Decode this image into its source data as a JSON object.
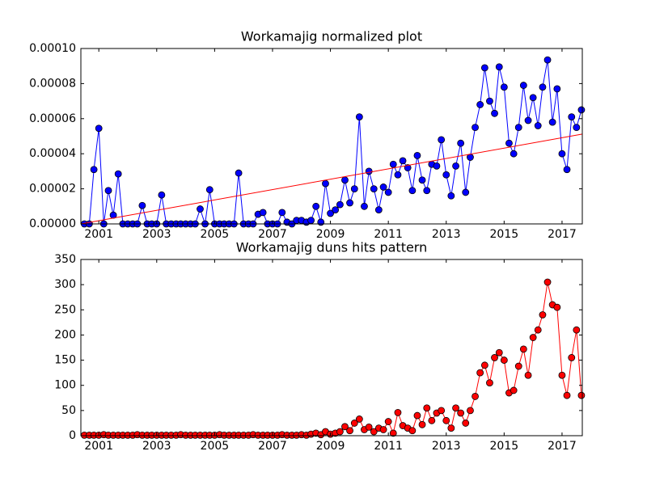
{
  "chart_data": [
    {
      "type": "line",
      "title": "Workamajig normalized plot",
      "xlim": [
        2000.38,
        2017.7
      ],
      "xticks": [
        2001,
        2003,
        2005,
        2007,
        2009,
        2011,
        2013,
        2015,
        2017
      ],
      "ylim": [
        0,
        0.0001
      ],
      "yticks": [
        {
          "value": 0,
          "label": "0.00000"
        },
        {
          "value": 2e-05,
          "label": "0.00002"
        },
        {
          "value": 4e-05,
          "label": "0.00004"
        },
        {
          "value": 6e-05,
          "label": "0.00006"
        },
        {
          "value": 8e-05,
          "label": "0.00008"
        },
        {
          "value": 0.0001,
          "label": "0.00010"
        }
      ],
      "x": [
        2000.5,
        2000.67,
        2000.83,
        2001,
        2001.17,
        2001.33,
        2001.5,
        2001.67,
        2001.83,
        2002,
        2002.17,
        2002.33,
        2002.5,
        2002.67,
        2002.83,
        2003,
        2003.17,
        2003.33,
        2003.5,
        2003.67,
        2003.83,
        2004,
        2004.17,
        2004.33,
        2004.5,
        2004.67,
        2004.83,
        2005,
        2005.17,
        2005.33,
        2005.5,
        2005.67,
        2005.83,
        2006,
        2006.17,
        2006.33,
        2006.5,
        2006.67,
        2006.83,
        2007,
        2007.17,
        2007.33,
        2007.5,
        2007.67,
        2007.83,
        2008,
        2008.17,
        2008.33,
        2008.5,
        2008.67,
        2008.83,
        2009,
        2009.17,
        2009.33,
        2009.5,
        2009.67,
        2009.83,
        2010,
        2010.17,
        2010.33,
        2010.5,
        2010.67,
        2010.83,
        2011,
        2011.17,
        2011.33,
        2011.5,
        2011.67,
        2011.83,
        2012,
        2012.17,
        2012.33,
        2012.5,
        2012.67,
        2012.83,
        2013,
        2013.17,
        2013.33,
        2013.5,
        2013.67,
        2013.83,
        2014,
        2014.17,
        2014.33,
        2014.5,
        2014.67,
        2014.83,
        2015,
        2015.17,
        2015.33,
        2015.5,
        2015.67,
        2015.83,
        2016,
        2016.17,
        2016.33,
        2016.5,
        2016.67,
        2016.83,
        2017,
        2017.17,
        2017.33,
        2017.5,
        2017.67
      ],
      "series": [
        {
          "color": "#0000ff",
          "marker": true,
          "values": [
            0,
            0,
            3.1e-05,
            5.45e-05,
            0,
            1.9e-05,
            5e-06,
            2.85e-05,
            0,
            0,
            0,
            0,
            1.05e-05,
            0,
            0,
            0,
            1.65e-05,
            0,
            0,
            0,
            0,
            0,
            0,
            0,
            8.5e-06,
            0,
            1.95e-05,
            0,
            0,
            0,
            0,
            0,
            2.9e-05,
            0,
            0,
            0,
            5.5e-06,
            6.5e-06,
            0,
            0,
            0,
            6.5e-06,
            1e-06,
            0,
            2e-06,
            2e-06,
            1e-06,
            2e-06,
            1e-05,
            1e-06,
            2.3e-05,
            6e-06,
            8e-06,
            1.1e-05,
            2.5e-05,
            1.2e-05,
            2e-05,
            6.1e-05,
            1e-05,
            3e-05,
            2e-05,
            8e-06,
            2.1e-05,
            1.8e-05,
            3.4e-05,
            2.8e-05,
            3.6e-05,
            3.2e-05,
            1.9e-05,
            3.9e-05,
            2.5e-05,
            1.9e-05,
            3.4e-05,
            3.3e-05,
            4.8e-05,
            2.8e-05,
            1.6e-05,
            3.3e-05,
            4.6e-05,
            1.8e-05,
            3.8e-05,
            5.5e-05,
            6.8e-05,
            8.9e-05,
            7e-05,
            6.3e-05,
            8.95e-05,
            7.8e-05,
            4.6e-05,
            4e-05,
            5.5e-05,
            7.9e-05,
            5.9e-05,
            7.2e-05,
            5.6e-05,
            7.8e-05,
            9.35e-05,
            5.8e-05,
            7.7e-05,
            4e-05,
            3.1e-05,
            6.1e-05,
            5.5e-05,
            6.5e-05
          ]
        },
        {
          "color": "#ff0000",
          "marker": false,
          "x": [
            2000.38,
            2017.7
          ],
          "values": [
            0,
            5.12e-05
          ]
        }
      ]
    },
    {
      "type": "line",
      "title": "Workamajig duns hits pattern",
      "xlim": [
        2000.38,
        2017.7
      ],
      "xticks": [
        2001,
        2003,
        2005,
        2007,
        2009,
        2011,
        2013,
        2015,
        2017
      ],
      "ylim": [
        0,
        350
      ],
      "yticks": [
        0,
        50,
        100,
        150,
        200,
        250,
        300,
        350
      ],
      "x": [
        2000.5,
        2000.67,
        2000.83,
        2001,
        2001.17,
        2001.33,
        2001.5,
        2001.67,
        2001.83,
        2002,
        2002.17,
        2002.33,
        2002.5,
        2002.67,
        2002.83,
        2003,
        2003.17,
        2003.33,
        2003.5,
        2003.67,
        2003.83,
        2004,
        2004.17,
        2004.33,
        2004.5,
        2004.67,
        2004.83,
        2005,
        2005.17,
        2005.33,
        2005.5,
        2005.67,
        2005.83,
        2006,
        2006.17,
        2006.33,
        2006.5,
        2006.67,
        2006.83,
        2007,
        2007.17,
        2007.33,
        2007.5,
        2007.67,
        2007.83,
        2008,
        2008.17,
        2008.33,
        2008.5,
        2008.67,
        2008.83,
        2009,
        2009.17,
        2009.33,
        2009.5,
        2009.67,
        2009.83,
        2010,
        2010.17,
        2010.33,
        2010.5,
        2010.67,
        2010.83,
        2011,
        2011.17,
        2011.33,
        2011.5,
        2011.67,
        2011.83,
        2012,
        2012.17,
        2012.33,
        2012.5,
        2012.67,
        2012.83,
        2013,
        2013.17,
        2013.33,
        2013.5,
        2013.67,
        2013.83,
        2014,
        2014.17,
        2014.33,
        2014.5,
        2014.67,
        2014.83,
        2015,
        2015.17,
        2015.33,
        2015.5,
        2015.67,
        2015.83,
        2016,
        2016.17,
        2016.33,
        2016.5,
        2016.67,
        2016.83,
        2017,
        2017.17,
        2017.33,
        2017.5,
        2017.67
      ],
      "series": [
        {
          "color": "#ff0000",
          "marker": true,
          "values": [
            1,
            1,
            1,
            1,
            2,
            1,
            1,
            1,
            1,
            1,
            1,
            2,
            1,
            1,
            1,
            1,
            1,
            1,
            1,
            1,
            2,
            1,
            1,
            1,
            1,
            1,
            1,
            1,
            2,
            1,
            1,
            1,
            1,
            1,
            1,
            2,
            1,
            1,
            1,
            1,
            1,
            2,
            1,
            1,
            1,
            2,
            1,
            3,
            5,
            2,
            8,
            3,
            5,
            8,
            18,
            10,
            25,
            33,
            12,
            17,
            8,
            15,
            12,
            28,
            5,
            46,
            20,
            15,
            10,
            40,
            22,
            55,
            30,
            45,
            50,
            30,
            15,
            55,
            45,
            25,
            50,
            78,
            125,
            140,
            105,
            155,
            165,
            150,
            85,
            90,
            138,
            172,
            120,
            195,
            210,
            240,
            305,
            260,
            255,
            120,
            80,
            155,
            210,
            80
          ]
        }
      ]
    }
  ]
}
